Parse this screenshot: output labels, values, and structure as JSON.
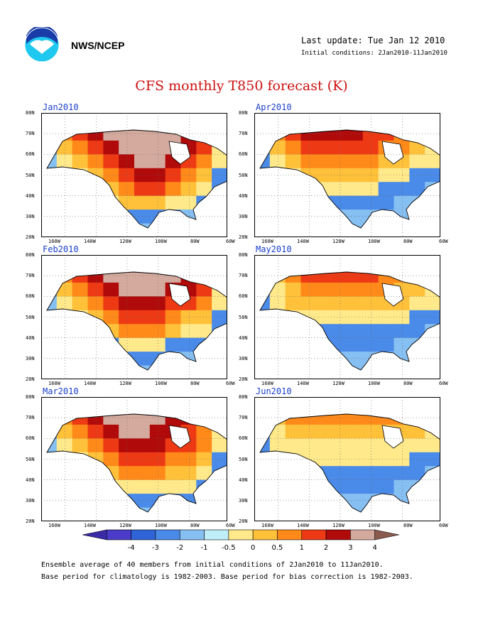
{
  "header": {
    "org": "NWS/NCEP",
    "last_update": "Last update: Tue Jan 12 2010",
    "initial_conditions": "Initial conditions: 2Jan2010-11Jan2010"
  },
  "title": "CFS monthly T850 forecast (K)",
  "axes": {
    "lat_labels": [
      "80N",
      "70N",
      "60N",
      "50N",
      "40N",
      "30N",
      "20N"
    ],
    "lon_labels": [
      "160W",
      "140W",
      "120W",
      "100W",
      "80W",
      "60W"
    ]
  },
  "panels": [
    {
      "label": "Jan2010",
      "pattern": [
        [
          3,
          5,
          6,
          7,
          8,
          8,
          8,
          8,
          7,
          7,
          6,
          4
        ],
        [
          3,
          5,
          6,
          7,
          8,
          8,
          8,
          8,
          8,
          7,
          6,
          4
        ],
        [
          2,
          4,
          5,
          6,
          7,
          8,
          8,
          8,
          8,
          7,
          6,
          3
        ],
        [
          1,
          3,
          4,
          5,
          6,
          7,
          8,
          8,
          7,
          6,
          5,
          3
        ],
        [
          0,
          2,
          3,
          4,
          5,
          6,
          7,
          7,
          6,
          5,
          4,
          2
        ],
        [
          0,
          1,
          2,
          3,
          4,
          5,
          6,
          6,
          5,
          4,
          3,
          2
        ],
        [
          0,
          0,
          1,
          2,
          3,
          4,
          4,
          4,
          3,
          3,
          2,
          1
        ],
        [
          0,
          0,
          0,
          1,
          2,
          2,
          2,
          2,
          2,
          1,
          1,
          1
        ],
        [
          0,
          0,
          0,
          0,
          1,
          1,
          1,
          1,
          1,
          1,
          1,
          0
        ]
      ]
    },
    {
      "label": "Apr2010",
      "pattern": [
        [
          3,
          5,
          6,
          7,
          7,
          7,
          7,
          7,
          6,
          6,
          5,
          4
        ],
        [
          3,
          5,
          6,
          7,
          7,
          7,
          7,
          6,
          6,
          5,
          5,
          4
        ],
        [
          2,
          4,
          5,
          6,
          6,
          6,
          6,
          6,
          5,
          5,
          4,
          3
        ],
        [
          2,
          3,
          4,
          5,
          5,
          5,
          5,
          5,
          4,
          4,
          3,
          3
        ],
        [
          1,
          2,
          3,
          4,
          4,
          4,
          4,
          4,
          3,
          3,
          2,
          2
        ],
        [
          1,
          1,
          2,
          3,
          3,
          3,
          3,
          3,
          2,
          2,
          2,
          1
        ],
        [
          0,
          1,
          1,
          2,
          2,
          2,
          2,
          2,
          2,
          1,
          1,
          1
        ],
        [
          0,
          0,
          1,
          1,
          1,
          1,
          1,
          1,
          1,
          1,
          1,
          0
        ],
        [
          0,
          0,
          0,
          1,
          1,
          1,
          1,
          1,
          1,
          1,
          0,
          0
        ]
      ]
    },
    {
      "label": "Feb2010",
      "pattern": [
        [
          3,
          5,
          6,
          7,
          8,
          8,
          8,
          8,
          8,
          7,
          6,
          4
        ],
        [
          3,
          5,
          6,
          7,
          8,
          8,
          8,
          8,
          8,
          7,
          6,
          4
        ],
        [
          2,
          4,
          5,
          6,
          7,
          8,
          8,
          8,
          7,
          7,
          6,
          3
        ],
        [
          1,
          3,
          4,
          5,
          6,
          7,
          7,
          7,
          6,
          6,
          5,
          3
        ],
        [
          0,
          2,
          3,
          4,
          5,
          6,
          6,
          6,
          5,
          4,
          4,
          2
        ],
        [
          0,
          1,
          2,
          3,
          4,
          5,
          5,
          5,
          4,
          3,
          3,
          2
        ],
        [
          0,
          0,
          1,
          2,
          2,
          3,
          3,
          3,
          2,
          2,
          2,
          1
        ],
        [
          0,
          0,
          0,
          1,
          1,
          2,
          2,
          2,
          1,
          1,
          1,
          1
        ],
        [
          0,
          0,
          0,
          0,
          1,
          1,
          1,
          1,
          1,
          1,
          0,
          0
        ]
      ]
    },
    {
      "label": "May2010",
      "pattern": [
        [
          3,
          4,
          5,
          6,
          6,
          6,
          6,
          6,
          6,
          5,
          5,
          4
        ],
        [
          3,
          4,
          5,
          6,
          6,
          6,
          6,
          6,
          5,
          5,
          4,
          4
        ],
        [
          2,
          3,
          4,
          5,
          5,
          5,
          5,
          5,
          5,
          4,
          4,
          3
        ],
        [
          2,
          3,
          4,
          4,
          4,
          4,
          4,
          4,
          4,
          4,
          3,
          3
        ],
        [
          1,
          2,
          3,
          3,
          3,
          3,
          3,
          3,
          3,
          3,
          2,
          2
        ],
        [
          1,
          1,
          2,
          2,
          2,
          2,
          2,
          2,
          2,
          2,
          2,
          1
        ],
        [
          0,
          1,
          1,
          2,
          2,
          2,
          2,
          2,
          2,
          1,
          1,
          1
        ],
        [
          0,
          0,
          1,
          1,
          1,
          1,
          1,
          1,
          1,
          1,
          1,
          0
        ],
        [
          0,
          0,
          0,
          1,
          1,
          1,
          1,
          1,
          1,
          1,
          0,
          0
        ]
      ]
    },
    {
      "label": "Mar2010",
      "pattern": [
        [
          3,
          5,
          6,
          7,
          8,
          8,
          8,
          8,
          7,
          7,
          6,
          4
        ],
        [
          3,
          5,
          6,
          7,
          8,
          8,
          8,
          8,
          7,
          7,
          6,
          4
        ],
        [
          2,
          4,
          5,
          6,
          7,
          8,
          8,
          7,
          7,
          6,
          5,
          3
        ],
        [
          1,
          3,
          4,
          5,
          6,
          7,
          7,
          7,
          6,
          6,
          5,
          3
        ],
        [
          0,
          2,
          3,
          4,
          5,
          6,
          6,
          6,
          5,
          5,
          4,
          2
        ],
        [
          0,
          1,
          2,
          3,
          4,
          5,
          5,
          5,
          4,
          4,
          3,
          2
        ],
        [
          0,
          0,
          1,
          2,
          3,
          3,
          3,
          3,
          3,
          3,
          2,
          1
        ],
        [
          0,
          0,
          0,
          1,
          2,
          2,
          2,
          2,
          2,
          2,
          1,
          1
        ],
        [
          0,
          0,
          0,
          0,
          1,
          1,
          1,
          1,
          1,
          1,
          1,
          0
        ]
      ]
    },
    {
      "label": "Jun2010",
      "pattern": [
        [
          3,
          4,
          5,
          5,
          5,
          5,
          5,
          5,
          5,
          5,
          5,
          4
        ],
        [
          3,
          4,
          5,
          5,
          5,
          5,
          5,
          5,
          5,
          5,
          4,
          4
        ],
        [
          2,
          3,
          4,
          4,
          4,
          4,
          4,
          4,
          4,
          4,
          4,
          3
        ],
        [
          2,
          3,
          3,
          3,
          3,
          3,
          3,
          3,
          3,
          3,
          3,
          3
        ],
        [
          1,
          2,
          3,
          3,
          3,
          3,
          3,
          3,
          3,
          3,
          2,
          2
        ],
        [
          1,
          1,
          2,
          2,
          2,
          2,
          2,
          2,
          2,
          2,
          2,
          1
        ],
        [
          0,
          1,
          1,
          2,
          2,
          2,
          2,
          2,
          2,
          1,
          1,
          1
        ],
        [
          0,
          0,
          1,
          1,
          1,
          1,
          1,
          1,
          1,
          1,
          1,
          0
        ],
        [
          0,
          0,
          0,
          1,
          1,
          1,
          1,
          1,
          1,
          1,
          0,
          0
        ]
      ]
    }
  ],
  "colorbar": {
    "labels": [
      "-4",
      "-3",
      "-2",
      "-1",
      "-0.5",
      "0",
      "0.5",
      "1",
      "2",
      "3",
      "4"
    ],
    "colors": [
      "#3b2aa8",
      "#4a3cc8",
      "#2e64d8",
      "#4a8ae8",
      "#86bff2",
      "#bfeef8",
      "#ffe98a",
      "#ffc03a",
      "#ff8a1a",
      "#ee3a14",
      "#b00a0a",
      "#d4aa9e",
      "#8a5a4e"
    ]
  },
  "footer": {
    "line1": "Ensemble average of 40 members from initial conditions of 2Jan2010 to 11Jan2010.",
    "line2": "Base period for climatology is 1982-2003. Base period for bias correction is 1982-2003."
  }
}
